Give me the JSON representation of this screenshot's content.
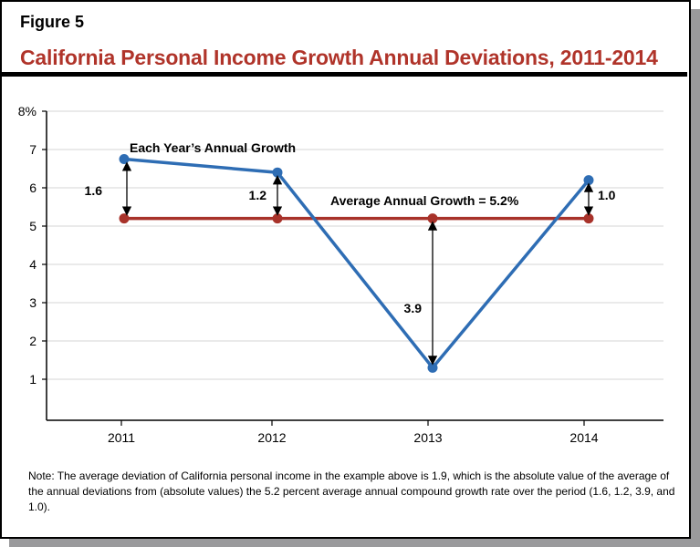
{
  "figure_label": "Figure 5",
  "title": "California Personal Income Growth Annual Deviations, 2011-2014",
  "note": "Note: The average deviation of California personal income in the example above is 1.9, which is the absolute value of the average of the annual deviations from (absolute values) the 5.2 percent average annual compound growth rate over the period (1.6, 1.2, 3.9, and 1.0).",
  "chart_data": {
    "type": "line",
    "categories": [
      "2011",
      "2012",
      "2013",
      "2014"
    ],
    "yticks": [
      "8%",
      "7",
      "6",
      "5",
      "4",
      "3",
      "2",
      "1"
    ],
    "ylim": [
      0,
      8
    ],
    "grid": true,
    "series": [
      {
        "name": "Each Year's Annual Growth",
        "color": "#2e6db4",
        "values": [
          6.75,
          6.4,
          1.3,
          6.2
        ]
      },
      {
        "name": "Average Annual Growth = 5.2%",
        "color": "#a8322a",
        "values": [
          5.2,
          5.2,
          5.2,
          5.2
        ]
      }
    ],
    "annotations": {
      "series_labels": [
        "Each Year’s Annual Growth",
        "Average Annual Growth = 5.2%"
      ],
      "deviations": [
        "1.6",
        "1.2",
        "3.9",
        "1.0"
      ]
    }
  }
}
